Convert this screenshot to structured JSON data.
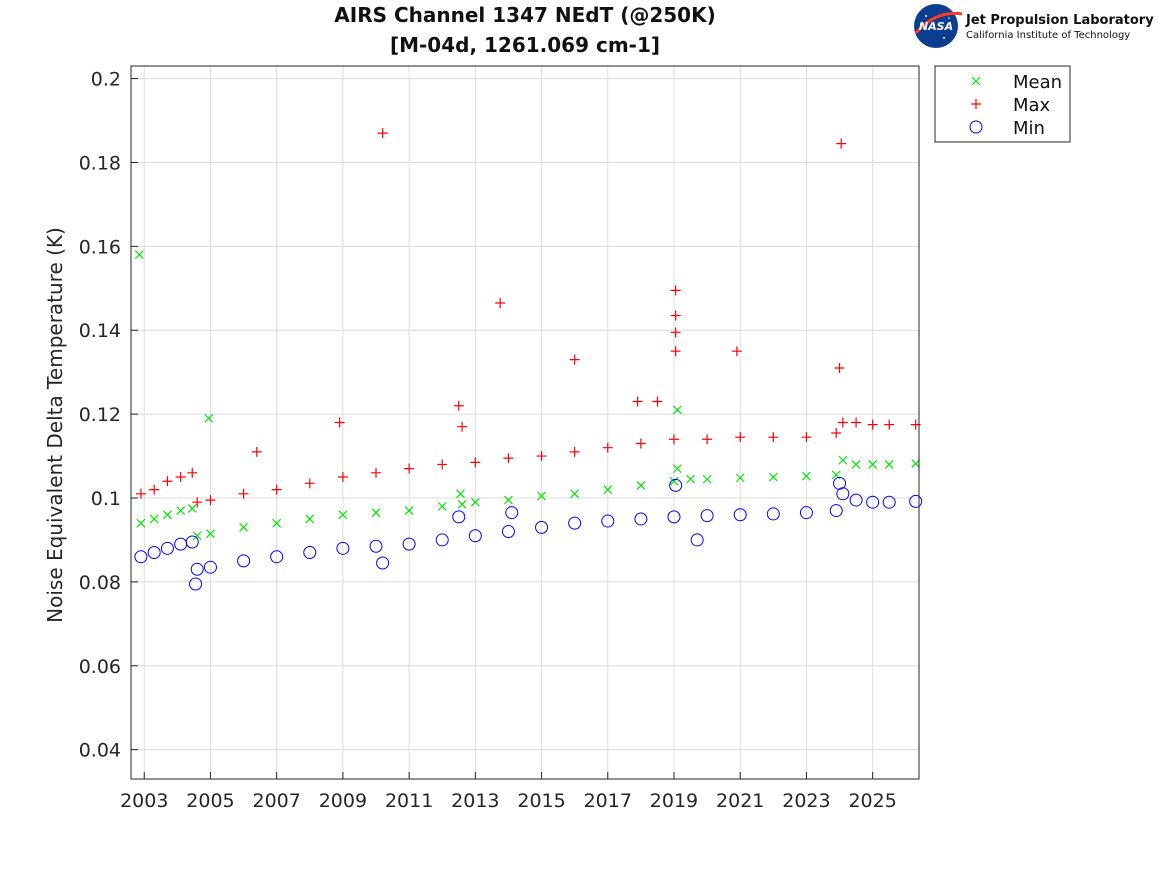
{
  "logo": {
    "nasa_text": "NASA",
    "title": "Jet Propulsion Laboratory",
    "subtitle": "California Institute of Technology"
  },
  "chart_data": {
    "type": "scatter",
    "title": "AIRS Channel 1347 NEdT (@250K)",
    "subtitle": "[M-04d, 1261.069 cm-1]",
    "xlabel": "",
    "ylabel": "Noise Equivalent Delta Temperature (K)",
    "xlim": [
      2002.6,
      2026.4
    ],
    "ylim": [
      0.033,
      0.203
    ],
    "xticks": [
      "2003",
      "2005",
      "2007",
      "2009",
      "2011",
      "2013",
      "2015",
      "2017",
      "2019",
      "2021",
      "2023",
      "2025"
    ],
    "yticks": [
      "0.04",
      "0.06",
      "0.08",
      "0.1",
      "0.12",
      "0.14",
      "0.16",
      "0.18",
      "0.2"
    ],
    "grid": true,
    "legend_position": "outside-top-right",
    "series": [
      {
        "name": "Mean",
        "marker": "x",
        "color": "#00e600",
        "x": [
          2002.9,
          2003.3,
          2003.7,
          2004.1,
          2004.45,
          2004.6,
          2005.0,
          2006.0,
          2007.0,
          2008.0,
          2009.0,
          2010.0,
          2011.0,
          2012.0,
          2012.6,
          2013.0,
          2014.0,
          2015.0,
          2016.0,
          2017.0,
          2018.0,
          2019.0,
          2019.5,
          2020.0,
          2021.0,
          2022.0,
          2023.0,
          2023.9,
          2024.1,
          2024.5,
          2025.0,
          2025.5,
          2026.3,
          2002.85,
          2004.95,
          2019.1,
          2019.1,
          2012.55
        ],
        "y": [
          0.094,
          0.095,
          0.096,
          0.097,
          0.0975,
          0.091,
          0.0915,
          0.093,
          0.094,
          0.095,
          0.096,
          0.0965,
          0.097,
          0.098,
          0.0985,
          0.099,
          0.0995,
          0.1005,
          0.101,
          0.102,
          0.103,
          0.104,
          0.1045,
          0.1045,
          0.1048,
          0.105,
          0.1052,
          0.1055,
          0.109,
          0.108,
          0.108,
          0.108,
          0.1082,
          0.158,
          0.119,
          0.121,
          0.107,
          0.101
        ]
      },
      {
        "name": "Max",
        "marker": "+",
        "color": "#ff0000",
        "x": [
          2002.9,
          2003.3,
          2003.7,
          2004.1,
          2004.45,
          2004.6,
          2005.0,
          2006.0,
          2007.0,
          2008.0,
          2009.0,
          2010.0,
          2011.0,
          2012.0,
          2013.0,
          2014.0,
          2015.0,
          2016.0,
          2017.0,
          2018.0,
          2019.0,
          2020.0,
          2021.0,
          2022.0,
          2023.0,
          2023.9,
          2024.1,
          2024.5,
          2025.0,
          2025.5,
          2026.3,
          2010.2,
          2024.05,
          2019.05,
          2019.05,
          2019.05,
          2019.05,
          2013.75,
          2016.0,
          2020.9,
          2024.0,
          2012.5,
          2008.9,
          2006.4,
          2018.5,
          2017.9,
          2012.6
        ],
        "y": [
          0.101,
          0.102,
          0.104,
          0.105,
          0.106,
          0.099,
          0.0995,
          0.101,
          0.102,
          0.1035,
          0.105,
          0.106,
          0.107,
          0.108,
          0.1085,
          0.1095,
          0.11,
          0.111,
          0.112,
          0.113,
          0.114,
          0.114,
          0.1145,
          0.1145,
          0.1145,
          0.1155,
          0.118,
          0.118,
          0.1175,
          0.1175,
          0.1175,
          0.187,
          0.1845,
          0.1495,
          0.1435,
          0.1395,
          0.135,
          0.1465,
          0.133,
          0.135,
          0.131,
          0.122,
          0.118,
          0.111,
          0.123,
          0.123,
          0.117
        ]
      },
      {
        "name": "Min",
        "marker": "o",
        "color": "#0000ff",
        "x": [
          2002.9,
          2003.3,
          2003.7,
          2004.1,
          2004.45,
          2004.6,
          2005.0,
          2006.0,
          2007.0,
          2008.0,
          2009.0,
          2010.0,
          2011.0,
          2012.0,
          2013.0,
          2014.0,
          2015.0,
          2016.0,
          2017.0,
          2018.0,
          2019.0,
          2020.0,
          2021.0,
          2022.0,
          2023.0,
          2023.9,
          2024.1,
          2024.5,
          2025.0,
          2025.5,
          2026.3,
          2004.55,
          2014.1,
          2019.05,
          2024.0,
          2012.5,
          2019.7,
          2010.2
        ],
        "y": [
          0.086,
          0.087,
          0.088,
          0.089,
          0.0895,
          0.083,
          0.0835,
          0.085,
          0.086,
          0.087,
          0.088,
          0.0885,
          0.089,
          0.09,
          0.091,
          0.092,
          0.093,
          0.094,
          0.0945,
          0.095,
          0.0955,
          0.0958,
          0.096,
          0.0962,
          0.0965,
          0.097,
          0.101,
          0.0995,
          0.099,
          0.099,
          0.0992,
          0.0795,
          0.0965,
          0.103,
          0.1035,
          0.0955,
          0.09,
          0.0845
        ]
      }
    ]
  }
}
